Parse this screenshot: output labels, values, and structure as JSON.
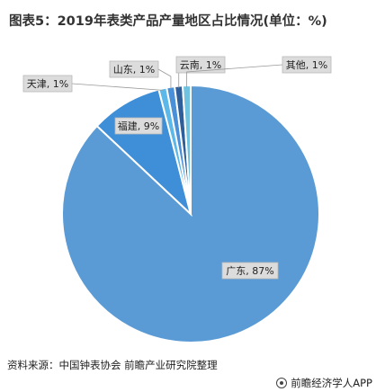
{
  "header": {
    "title": "图表5：2019年表类产品产量地区占比情况(单位：%)"
  },
  "footer": {
    "source": "资料来源：中国钟表协会 前瞻产业研究院整理",
    "brand": "前瞻经济学人APP"
  },
  "chart_data": {
    "type": "pie",
    "categories": [
      "广东",
      "福建",
      "天津",
      "山东",
      "云南",
      "其他"
    ],
    "values": [
      87,
      9,
      1,
      1,
      1,
      1
    ],
    "labels": [
      "广东, 87%",
      "福建, 9%",
      "天津, 1%",
      "山东, 1%",
      "云南, 1%",
      "其他, 1%"
    ],
    "colors": [
      "#5b9bd5",
      "#3e8fd8",
      "#5bb8e8",
      "#4a90d9",
      "#2f5f9a",
      "#6fc3e0"
    ],
    "unit": "%"
  }
}
